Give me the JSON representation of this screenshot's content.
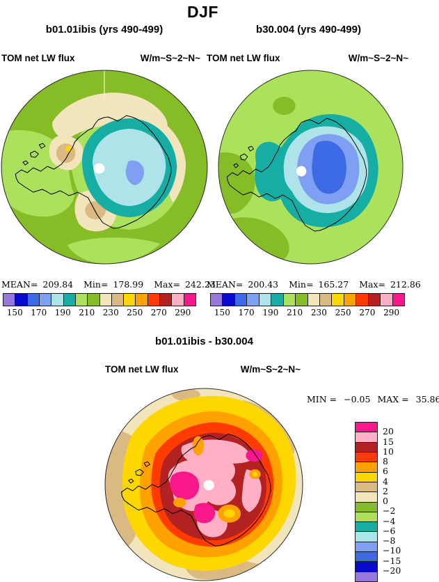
{
  "title": "DJF",
  "palette": {
    "purple": "#9678DC",
    "darkblue": "#0A0ACD",
    "royal": "#3D6BE6",
    "cornflower": "#7E9FF2",
    "palecyan": "#AEE3E9",
    "teal": "#16AEA4",
    "lightgreen": "#ACE25B",
    "olive": "#86BC26",
    "cream": "#F3E5BB",
    "tan": "#DBB983",
    "yellow": "#FFD700",
    "orange": "#FFA200",
    "redorange": "#FF3B00",
    "brick": "#B22222",
    "pink": "#FFB0C4",
    "magenta": "#F8188C"
  },
  "scale_order": [
    "purple",
    "darkblue",
    "royal",
    "cornflower",
    "palecyan",
    "teal",
    "lightgreen",
    "olive",
    "cream",
    "tan",
    "yellow",
    "orange",
    "redorange",
    "brick",
    "pink",
    "magenta"
  ],
  "diff_scale_order": [
    "magenta",
    "pink",
    "brick",
    "redorange",
    "orange",
    "yellow",
    "tan",
    "cream",
    "olive",
    "lightgreen",
    "teal",
    "palecyan",
    "cornflower",
    "royal",
    "darkblue",
    "purple"
  ],
  "top_ticks": [
    "150",
    "170",
    "190",
    "210",
    "230",
    "250",
    "270",
    "290"
  ],
  "diff_ticks": [
    "20",
    "15",
    "10",
    "8",
    "6",
    "4",
    "2",
    "0",
    "−2",
    "−4",
    "−6",
    "−8",
    "−10",
    "−15",
    "−20"
  ],
  "panels": {
    "left": {
      "subtitle": "b01.01ibis (yrs 490-499)",
      "field": "TOM net LW flux",
      "units": "W/m~S~2~N~",
      "mean_label": "MEAN=",
      "mean": "209.84",
      "min_label": "Min=",
      "min": "178.99",
      "max_label": "Max=",
      "max": "242.23"
    },
    "right": {
      "subtitle": "b30.004 (yrs 490-499)",
      "field": "TOM net LW flux",
      "units": "W/m~S~2~N~",
      "mean_label": "MEAN=",
      "mean": "200.43",
      "min_label": "Min=",
      "min": "165.27",
      "max_label": "Max=",
      "max": "212.86"
    },
    "diff": {
      "subtitle": "b01.01ibis - b30.004",
      "field": "TOM net LW flux",
      "units": "W/m~S~2~N~",
      "min_label": "MIN =",
      "min": "−0.05",
      "max_label": "MAX =",
      "max": "35.86"
    }
  },
  "chart_data": [
    {
      "type": "heatmap",
      "subtype": "south-polar-stereographic-contour-map",
      "season": "DJF",
      "title": "b01.01ibis (yrs 490-499)",
      "field": "TOM net LW flux",
      "units": "W/m~S~2~N~",
      "stats": {
        "mean": 209.84,
        "min": 178.99,
        "max": 242.23
      },
      "contour_levels": [
        140,
        150,
        160,
        170,
        180,
        190,
        200,
        210,
        220,
        230,
        240,
        250,
        260,
        270,
        280,
        290,
        300
      ],
      "labeled_ticks": [
        150,
        170,
        190,
        210,
        230,
        250,
        270,
        290
      ],
      "legend_position": "below",
      "notes": "cool (cyan/teal) minimum over Antarctic interior, olive-green ocean field, cream/tan arcs offshore"
    },
    {
      "type": "heatmap",
      "subtype": "south-polar-stereographic-contour-map",
      "season": "DJF",
      "title": "b30.004 (yrs 490-499)",
      "field": "TOM net LW flux",
      "units": "W/m~S~2~N~",
      "stats": {
        "mean": 200.43,
        "min": 165.27,
        "max": 212.86
      },
      "contour_levels": [
        140,
        150,
        160,
        170,
        180,
        190,
        200,
        210,
        220,
        230,
        240,
        250,
        260,
        270,
        280,
        290,
        300
      ],
      "labeled_ticks": [
        150,
        170,
        190,
        210,
        230,
        250,
        270,
        290
      ],
      "legend_position": "below",
      "notes": "deeper blue minimum over Antarctica, light-green ocean field"
    },
    {
      "type": "heatmap",
      "subtype": "south-polar-stereographic-contour-map",
      "season": "DJF",
      "title": "b01.01ibis - b30.004",
      "field": "TOM net LW flux",
      "units": "W/m~S~2~N~",
      "stats": {
        "min": -0.05,
        "max": 35.86
      },
      "contour_levels": [
        -20,
        -15,
        -10,
        -8,
        -6,
        -4,
        -2,
        0,
        2,
        4,
        6,
        8,
        10,
        15,
        20
      ],
      "legend_position": "right",
      "notes": "positive difference everywhere: dark-red/pink/magenta core over continent ringed by orange, yellow, tan"
    }
  ]
}
